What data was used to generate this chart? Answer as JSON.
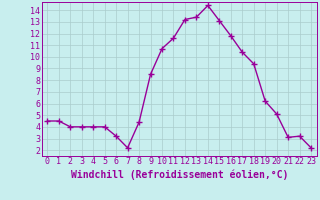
{
  "x": [
    0,
    1,
    2,
    3,
    4,
    5,
    6,
    7,
    8,
    9,
    10,
    11,
    12,
    13,
    14,
    15,
    16,
    17,
    18,
    19,
    20,
    21,
    22,
    23
  ],
  "y": [
    4.5,
    4.5,
    4.0,
    4.0,
    4.0,
    4.0,
    3.2,
    2.2,
    4.4,
    8.5,
    10.7,
    11.6,
    13.2,
    13.4,
    14.4,
    13.1,
    11.8,
    10.4,
    9.4,
    6.2,
    5.1,
    3.1,
    3.2,
    2.2
  ],
  "line_color": "#990099",
  "marker": "+",
  "marker_size": 4,
  "background_color": "#c8eeee",
  "grid_color": "#aacccc",
  "xlabel": "Windchill (Refroidissement éolien,°C)",
  "xlim": [
    -0.5,
    23.5
  ],
  "ylim": [
    1.5,
    14.7
  ],
  "ytick_min": 2,
  "ytick_max": 14,
  "xlabel_fontsize": 7,
  "tick_fontsize": 6,
  "line_width": 1.0
}
